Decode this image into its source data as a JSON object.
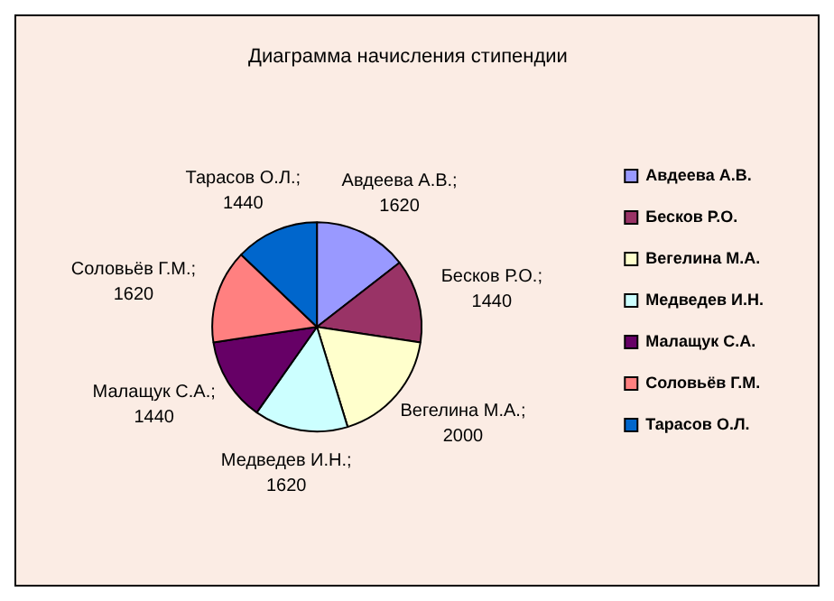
{
  "chart_data": {
    "type": "pie",
    "title": "Диаграмма начисления стипендии",
    "categories": [
      "Авдеева А.В.",
      "Бесков Р.О.",
      "Вегелина М.А.",
      "Медведев И.Н.",
      "Малащук С.А.",
      "Соловьёв Г.М.",
      "Тарасов О.Л."
    ],
    "values": [
      1620,
      1440,
      2000,
      1620,
      1440,
      1620,
      1440
    ],
    "value_labels": [
      "Авдеева А.В.; 1620",
      "Бесков Р.О.; 1440",
      "Вегелина М.А.; 2000",
      "Медведев И.Н.; 1620",
      "Малащук С.А.; 1440",
      "Соловьёв Г.М.; 1620",
      "Тарасов О.Л.; 1440"
    ],
    "colors": [
      "#9999ff",
      "#993366",
      "#ffffcc",
      "#ccffff",
      "#660066",
      "#ff8080",
      "#0066cc"
    ],
    "legend": "right"
  }
}
